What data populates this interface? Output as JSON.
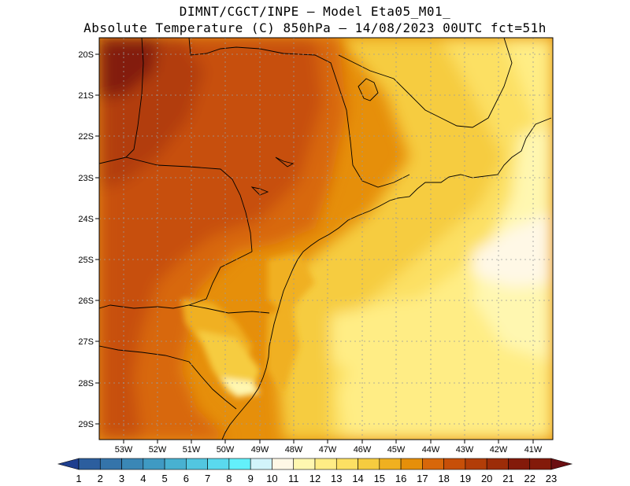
{
  "title_line1": "DIMNT/CGCT/INPE –  Model Eta05_M01_",
  "title_line2": "Absolute Temperature (C) 850hPa –  14/08/2023 00UTC fct=51h",
  "lat_labels": [
    "20S",
    "21S",
    "22S",
    "23S",
    "24S",
    "25S",
    "26S",
    "27S",
    "28S",
    "29S"
  ],
  "lon_labels": [
    "53W",
    "52W",
    "51W",
    "50W",
    "49W",
    "48W",
    "47W",
    "46W",
    "45W",
    "44W",
    "43W",
    "42W",
    "41W"
  ],
  "colorbar": {
    "labels": [
      "1",
      "2",
      "3",
      "4",
      "5",
      "6",
      "7",
      "8",
      "9",
      "10",
      "11",
      "12",
      "13",
      "14",
      "15",
      "16",
      "17",
      "18",
      "19",
      "20",
      "21",
      "22",
      "23"
    ],
    "colors": [
      "#1f3f8f",
      "#2c5e9e",
      "#3474aa",
      "#3a87b6",
      "#3f9ac3",
      "#48b1d1",
      "#52c6e0",
      "#5ad9ee",
      "#63f0fb",
      "#d2f4fb",
      "#fff8e6",
      "#fff7b0",
      "#ffed85",
      "#fce063",
      "#f6cc3f",
      "#f0b020",
      "#e68f0a",
      "#d8670a",
      "#c74f08",
      "#b23d08",
      "#9c2c08",
      "#831a0a",
      "#6b0f12"
    ]
  },
  "colors": {
    "background": "#ffffff",
    "grid": "#999999",
    "coast": "#000000"
  }
}
